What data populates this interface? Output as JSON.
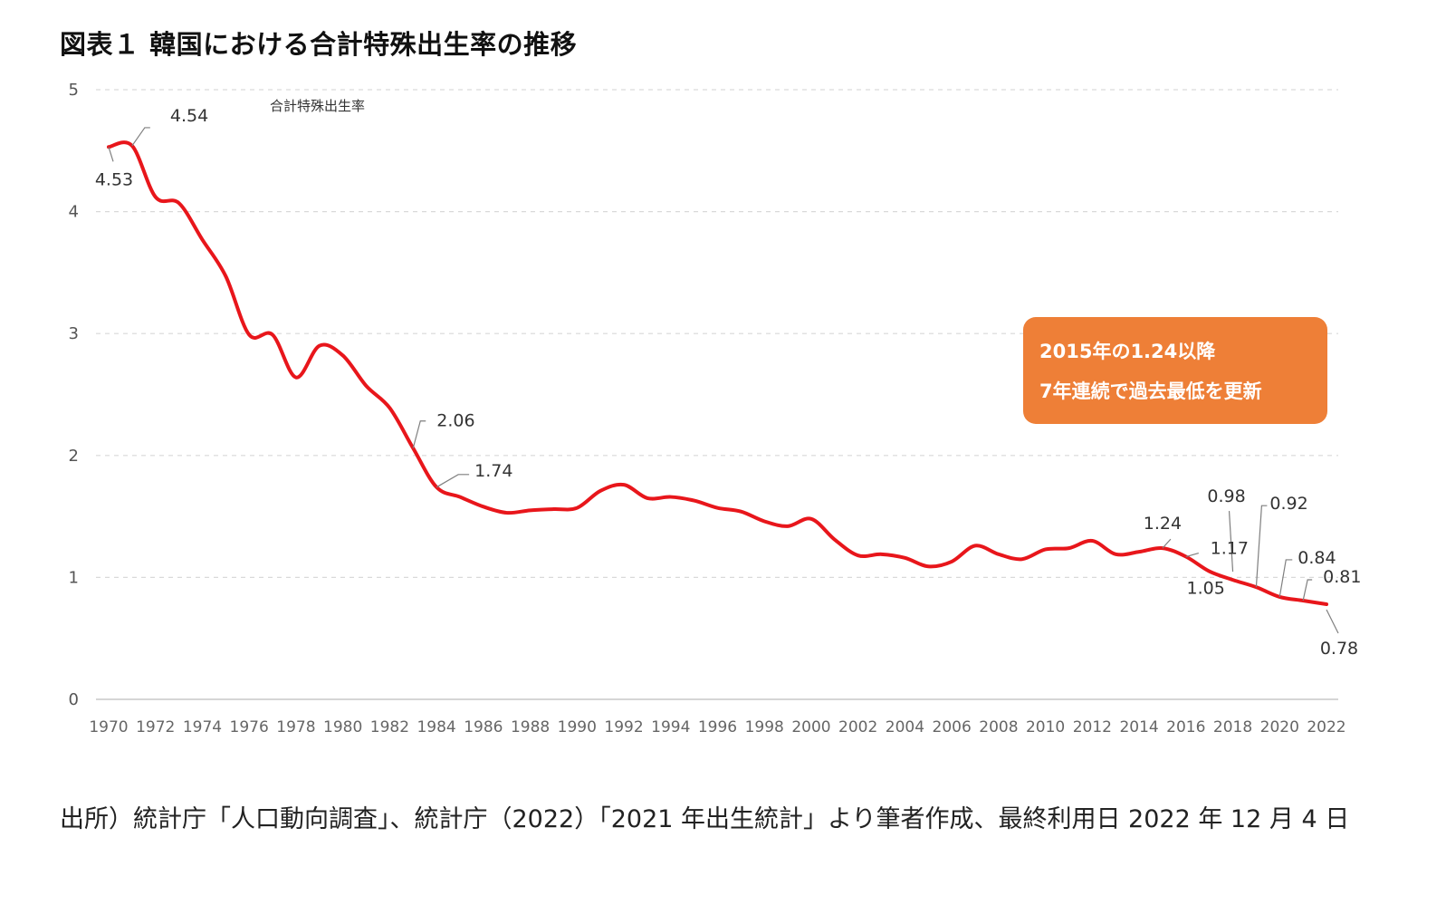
{
  "title": "図表１ 韓国における合計特殊出生率の推移",
  "callout": {
    "line1": "2015年の1.24以降",
    "line2": "7年連続で過去最低を更新"
  },
  "source": "出所）統計庁「人口動向調査」、統計庁（2022）「2021 年出生統計」より筆者作成、最終利用日 2022 年 12 月 4 日",
  "colors": {
    "line": "#e8161b",
    "callout": "#ee7f37",
    "grid": "#d9d9d9"
  },
  "chart_data": {
    "type": "line",
    "title": "",
    "xlabel": "",
    "ylabel": "",
    "ylim": [
      0,
      5
    ],
    "yticks": [
      "0",
      "1",
      "2",
      "3",
      "4",
      "5"
    ],
    "grid": "horizontal dashed",
    "series": [
      {
        "name": "合計特殊出生率",
        "x": [
          1970,
          1971,
          1972,
          1973,
          1974,
          1975,
          1976,
          1977,
          1978,
          1979,
          1980,
          1981,
          1982,
          1983,
          1984,
          1985,
          1986,
          1987,
          1988,
          1989,
          1990,
          1991,
          1992,
          1993,
          1994,
          1995,
          1996,
          1997,
          1998,
          1999,
          2000,
          2001,
          2002,
          2003,
          2004,
          2005,
          2006,
          2007,
          2008,
          2009,
          2010,
          2011,
          2012,
          2013,
          2014,
          2015,
          2016,
          2017,
          2018,
          2019,
          2020,
          2021,
          2022
        ],
        "values": [
          4.53,
          4.54,
          4.12,
          4.07,
          3.77,
          3.47,
          2.99,
          2.99,
          2.64,
          2.9,
          2.82,
          2.57,
          2.39,
          2.06,
          1.74,
          1.66,
          1.58,
          1.53,
          1.55,
          1.56,
          1.57,
          1.71,
          1.76,
          1.65,
          1.66,
          1.63,
          1.57,
          1.54,
          1.46,
          1.42,
          1.48,
          1.31,
          1.18,
          1.19,
          1.16,
          1.09,
          1.13,
          1.26,
          1.19,
          1.15,
          1.23,
          1.24,
          1.3,
          1.19,
          1.21,
          1.24,
          1.17,
          1.05,
          0.98,
          0.92,
          0.84,
          0.81,
          0.78
        ]
      }
    ],
    "xtick_labels": [
      "1970",
      "1972",
      "1974",
      "1976",
      "1978",
      "1980",
      "1982",
      "1984",
      "1986",
      "1988",
      "1990",
      "1992",
      "1994",
      "1996",
      "1998",
      "2000",
      "2002",
      "2004",
      "2006",
      "2008",
      "2010",
      "2012",
      "2014",
      "2016",
      "2018",
      "2020",
      "2022"
    ],
    "annotations": [
      {
        "year": 1970,
        "text": "4.53"
      },
      {
        "year": 1971,
        "text": "4.54"
      },
      {
        "year": 1983,
        "text": "2.06"
      },
      {
        "year": 1984,
        "text": "1.74"
      },
      {
        "year": 2015,
        "text": "1.24"
      },
      {
        "year": 2016,
        "text": "1.17"
      },
      {
        "year": 2017,
        "text": "1.05"
      },
      {
        "year": 2018,
        "text": "0.98"
      },
      {
        "year": 2019,
        "text": "0.92"
      },
      {
        "year": 2020,
        "text": "0.84"
      },
      {
        "year": 2021,
        "text": "0.81"
      },
      {
        "year": 2022,
        "text": "0.78"
      }
    ]
  }
}
